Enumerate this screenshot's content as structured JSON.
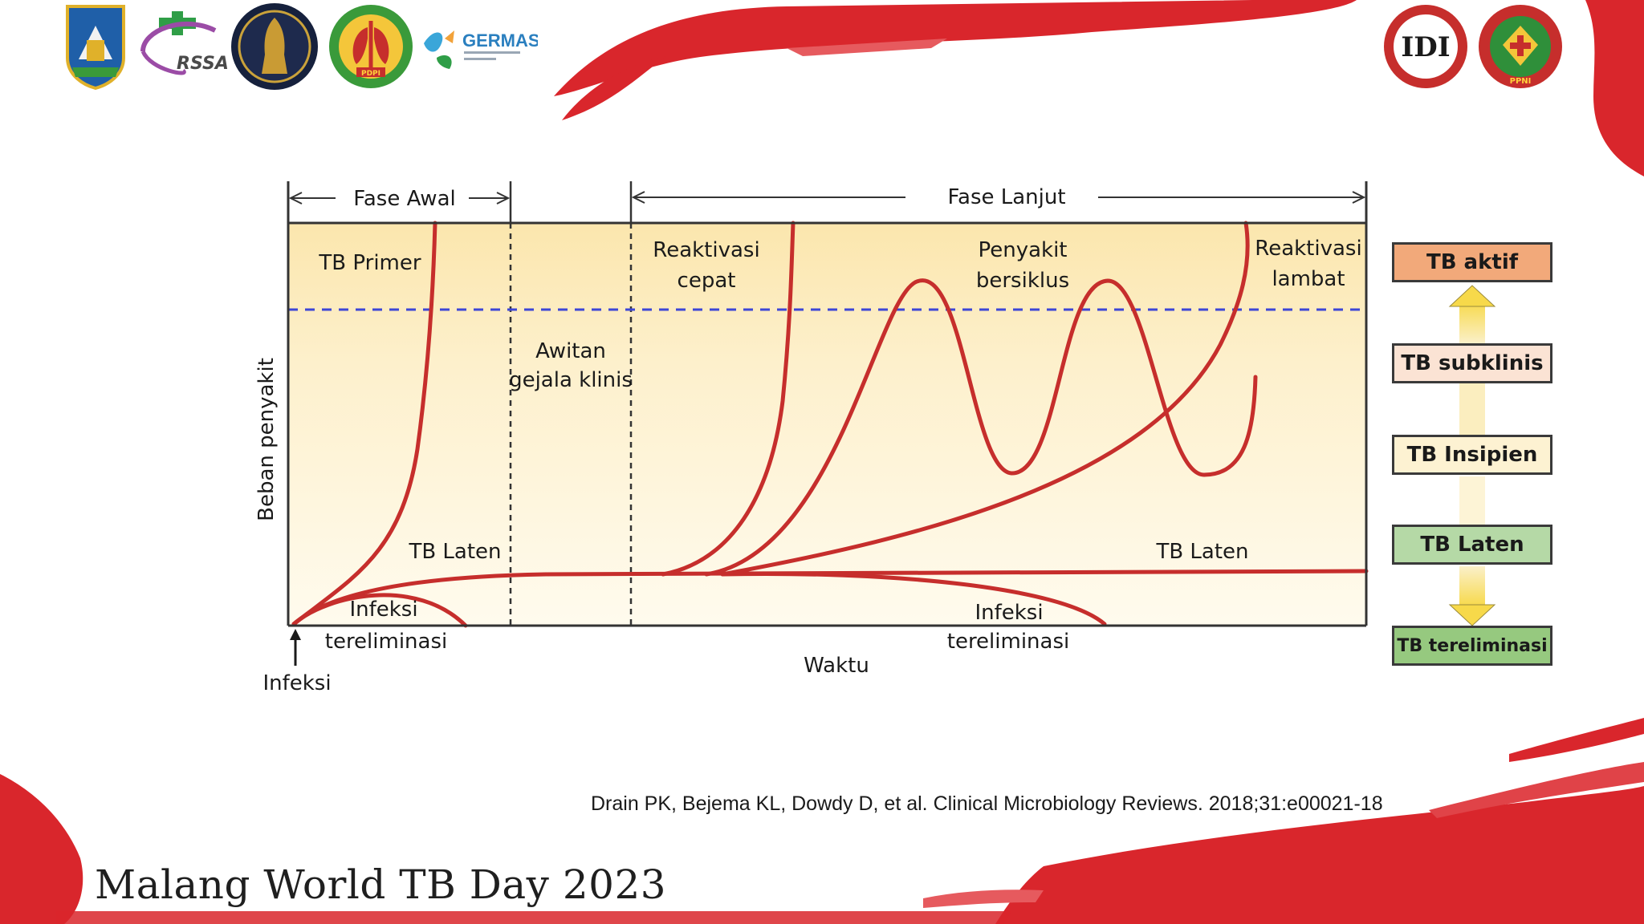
{
  "logos": [
    {
      "name": "east-java-emblem-logo"
    },
    {
      "name": "rssa-logo",
      "text": "RSSA"
    },
    {
      "name": "universitas-brawijaya-logo"
    },
    {
      "name": "pdpi-logo",
      "text": "PDPI"
    },
    {
      "name": "germas-logo",
      "text": "GERMAS"
    },
    {
      "name": "idi-logo",
      "text": "IDI"
    },
    {
      "name": "ppni-logo",
      "text": "PPNI"
    }
  ],
  "diagram": {
    "phases": {
      "early": "Fase Awal",
      "late": "Fase Lanjut"
    },
    "y_axis_label": "Beban penyakit",
    "x_axis_label": "Waktu",
    "labels": {
      "tb_primer": "TB Primer",
      "reaktivasi_cepat_1": "Reaktivasi",
      "reaktivasi_cepat_2": "cepat",
      "penyakit_bersiklus_1": "Penyakit",
      "penyakit_bersiklus_2": "bersiklus",
      "reaktivasi_lambat_1": "Reaktivasi",
      "reaktivasi_lambat_2": "lambat",
      "awitan_1": "Awitan",
      "awitan_2": "gejala klinis",
      "tb_laten_left": "TB Laten",
      "tb_laten_right": "TB Laten",
      "infeksi_tereliminasi_left_1": "Infeksi",
      "infeksi_tereliminasi_left_2": "tereliminasi",
      "infeksi_tereliminasi_right_1": "Infeksi",
      "infeksi_tereliminasi_right_2": "tereliminasi",
      "infeksi": "Infeksi"
    }
  },
  "legend": {
    "items": [
      {
        "label": "TB aktif",
        "color": "#f2a97a"
      },
      {
        "label": "TB subklinis",
        "color": "#fbe3d4"
      },
      {
        "label": "TB Insipien",
        "color": "#fdf2d2"
      },
      {
        "label": "TB Laten",
        "color": "#b5d9a6"
      },
      {
        "label": "TB tereliminasi",
        "color": "#96c97f"
      }
    ]
  },
  "citation": "Drain PK, Bejema KL, Dowdy D, et al. Clinical Microbiology Reviews. 2018;31:e00021-18",
  "footer_title": "Malang World TB Day 2023",
  "colors": {
    "accent_red": "#d7262b",
    "curve": "#c62e2c",
    "threshold_line": "#3c46d6"
  }
}
